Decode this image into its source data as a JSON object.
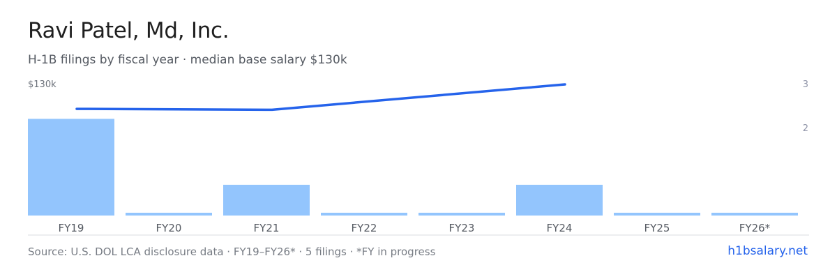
{
  "header": {
    "title": "Ravi Patel, Md, Inc.",
    "subtitle": "H-1B filings by fiscal year · median base salary $130k"
  },
  "footer": {
    "source": "Source: U.S. DOL LCA disclosure data · FY19–FY26* · 5 filings · *FY in progress",
    "brand": "h1bsalary.net"
  },
  "colors": {
    "bar": "#93c5fd",
    "line": "#2563eb",
    "axis": "#d9dce1"
  },
  "chart_data": {
    "type": "bar",
    "categories": [
      "FY19",
      "FY20",
      "FY21",
      "FY22",
      "FY23",
      "FY24",
      "FY25",
      "FY26*"
    ],
    "series": [
      {
        "type": "bar",
        "axis": "right",
        "values": [
          2.2,
          0,
          0.7,
          0,
          0,
          0.7,
          0,
          0
        ]
      },
      {
        "type": "line",
        "axis": "left",
        "values": [
          127400,
          null,
          127300,
          null,
          null,
          130000,
          null,
          null
        ]
      }
    ],
    "left_axis": {
      "tick_label": "$130k",
      "tick_value": 130000
    },
    "right_axis": {
      "ticks": [
        2,
        3
      ],
      "range": [
        0,
        3
      ]
    },
    "grid": false,
    "legend": "none"
  }
}
